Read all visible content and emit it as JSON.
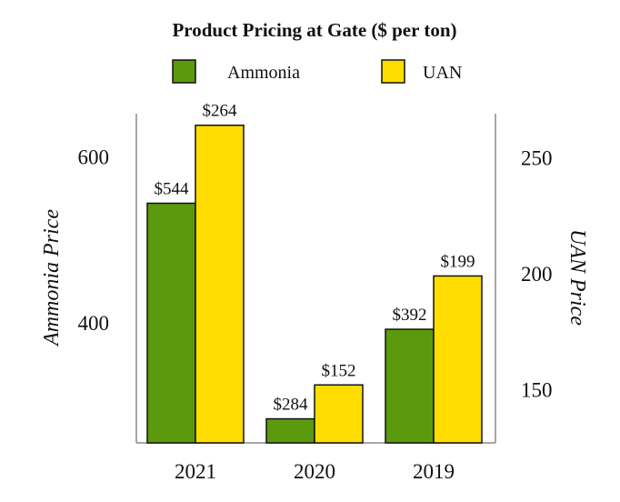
{
  "chart_data": {
    "type": "bar",
    "title": "Product Pricing at Gate ($ per ton)",
    "categories": [
      "2021",
      "2020",
      "2019"
    ],
    "series": [
      {
        "name": "Ammonia",
        "axis": "left",
        "color": "#5b9a0c",
        "values": [
          544,
          284,
          392
        ],
        "data_labels": [
          "$544",
          "$284",
          "$392"
        ]
      },
      {
        "name": "UAN",
        "axis": "right",
        "color": "#ffdd00",
        "values": [
          264,
          152,
          199
        ],
        "data_labels": [
          "$264",
          "$152",
          "$199"
        ]
      }
    ],
    "y_left": {
      "label": "Ammonia Price",
      "range": [
        255,
        652
      ],
      "ticks": [
        400,
        600
      ],
      "tick_labels": [
        "400",
        "600"
      ]
    },
    "y_right": {
      "label": "UAN Price",
      "range": [
        127,
        269
      ],
      "ticks": [
        150,
        200,
        250
      ],
      "tick_labels": [
        "150",
        "200",
        "250"
      ]
    },
    "grid": false,
    "legend_position": "top-center"
  }
}
